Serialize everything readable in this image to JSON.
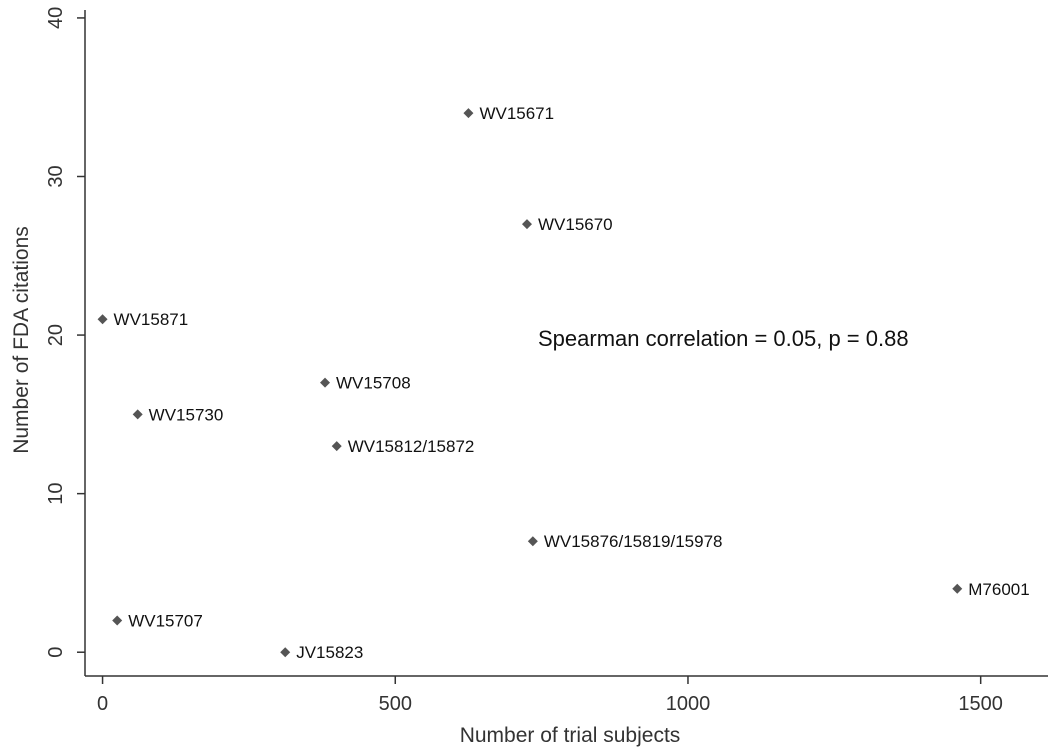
{
  "chart_data": {
    "type": "scatter",
    "xlabel": "Number of trial subjects",
    "ylabel": "Number of FDA citations",
    "xlim": [
      -30,
      1615
    ],
    "ylim": [
      -1.5,
      40.5
    ],
    "xticks": [
      0,
      500,
      1000,
      1500
    ],
    "yticks": [
      0,
      10,
      20,
      30,
      40
    ],
    "grid": false,
    "annotation": "Spearman correlation = 0.05, p = 0.88",
    "marker_color": "#555555",
    "points": [
      {
        "label": "WV15671",
        "x": 625,
        "y": 34
      },
      {
        "label": "WV15670",
        "x": 725,
        "y": 27
      },
      {
        "label": "WV15871",
        "x": 0,
        "y": 21
      },
      {
        "label": "WV15708",
        "x": 380,
        "y": 17
      },
      {
        "label": "WV15730",
        "x": 60,
        "y": 15
      },
      {
        "label": "WV15812/15872",
        "x": 400,
        "y": 13
      },
      {
        "label": "WV15876/15819/15978",
        "x": 735,
        "y": 7
      },
      {
        "label": "M76001",
        "x": 1460,
        "y": 4
      },
      {
        "label": "WV15707",
        "x": 25,
        "y": 2
      },
      {
        "label": "JV15823",
        "x": 312,
        "y": 0
      }
    ]
  }
}
